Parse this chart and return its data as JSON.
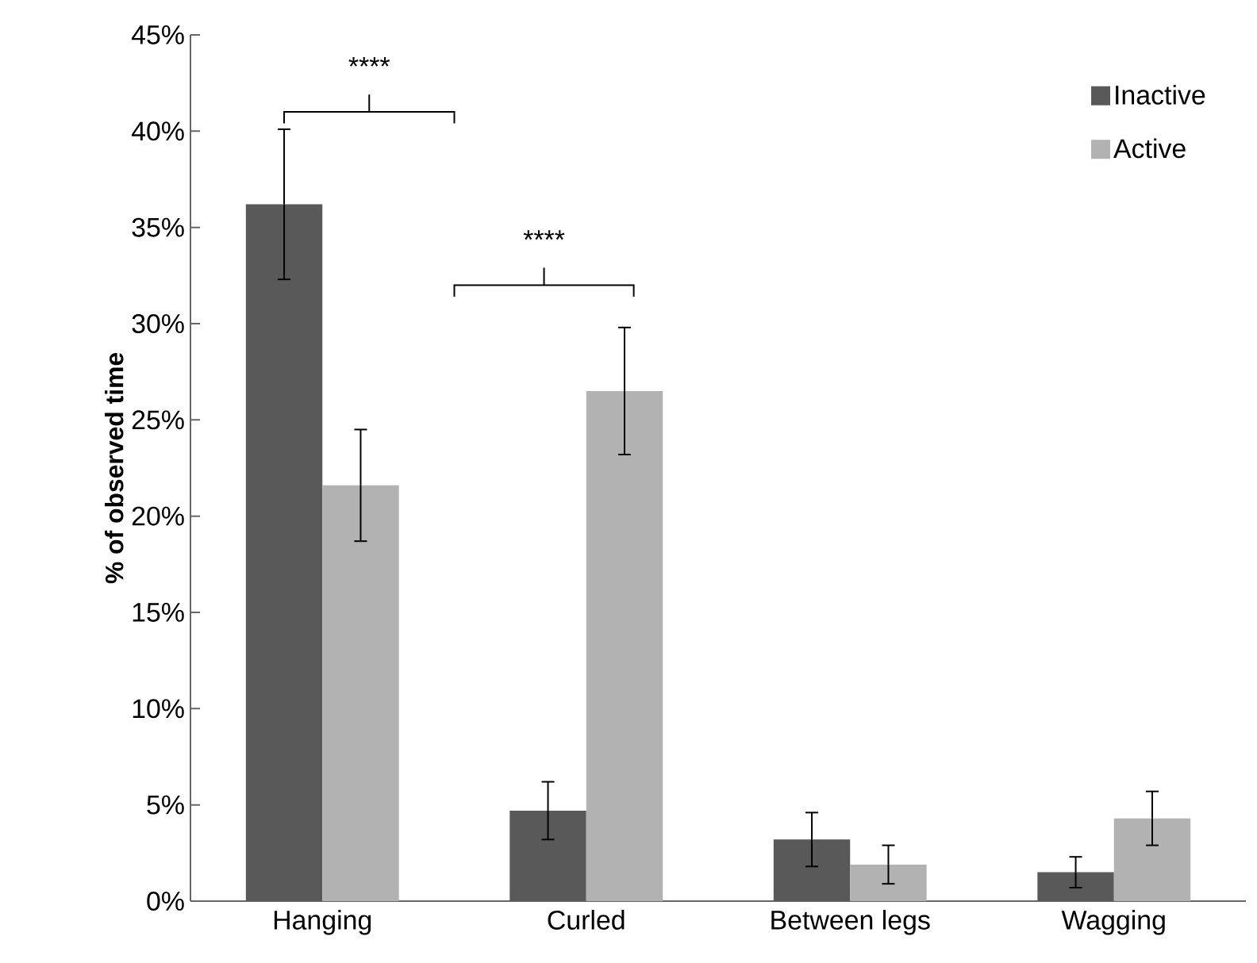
{
  "chart_data": {
    "type": "bar",
    "ylabel": "% of observed time",
    "categories": [
      "Hanging",
      "Curled",
      "Between legs",
      "Wagging"
    ],
    "series": [
      {
        "name": "Inactive",
        "color": "#595959",
        "values": [
          36.2,
          4.7,
          3.2,
          1.5
        ],
        "errors": [
          3.9,
          1.5,
          1.4,
          0.8
        ]
      },
      {
        "name": "Active",
        "color": "#b2b2b2",
        "values": [
          21.6,
          26.5,
          1.9,
          4.3
        ],
        "errors": [
          2.9,
          3.3,
          1.0,
          1.4
        ]
      }
    ],
    "ylim": [
      0,
      45
    ],
    "yticks": [
      {
        "value": 0,
        "label": "0%"
      },
      {
        "value": 5,
        "label": "5%"
      },
      {
        "value": 10,
        "label": "10%"
      },
      {
        "value": 15,
        "label": "15%"
      },
      {
        "value": 20,
        "label": "20%"
      },
      {
        "value": 25,
        "label": "25%"
      },
      {
        "value": 30,
        "label": "30%"
      },
      {
        "value": 35,
        "label": "35%"
      },
      {
        "value": 40,
        "label": "40%"
      },
      {
        "value": 45,
        "label": "45%"
      }
    ],
    "annotations": [
      "****",
      "****"
    ],
    "legend": "top right"
  }
}
